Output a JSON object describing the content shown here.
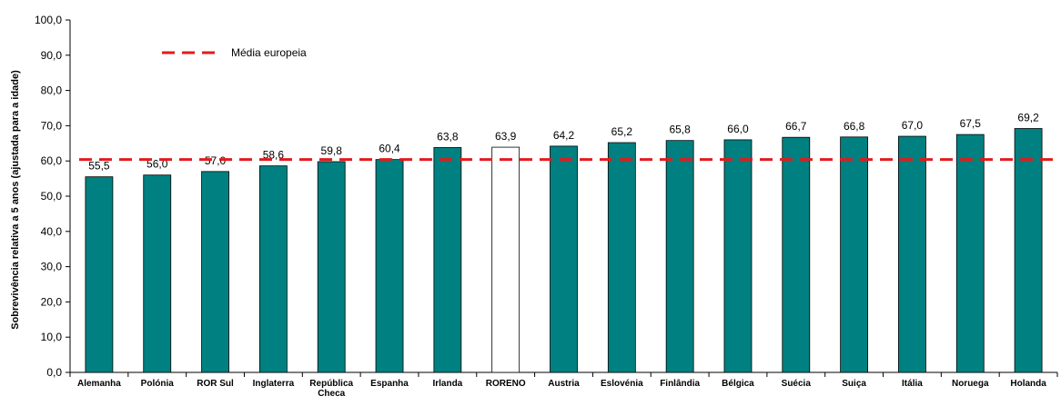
{
  "chart_data": {
    "type": "bar",
    "ylabel": "Sobrevivência relativa a 5 anos (ajustada para a idade)",
    "ylim": [
      0,
      100
    ],
    "ytick_step": 10,
    "y_tick_labels": [
      "0,0",
      "10,0",
      "20,0",
      "30,0",
      "40,0",
      "50,0",
      "60,0",
      "70,0",
      "80,0",
      "90,0",
      "100,0"
    ],
    "grid": false,
    "categories": [
      [
        "Alemanha"
      ],
      [
        "Polónia"
      ],
      [
        "ROR Sul"
      ],
      [
        "Inglaterra"
      ],
      [
        "República",
        "Checa"
      ],
      [
        "Espanha"
      ],
      [
        "Irlanda"
      ],
      [
        "RORENO"
      ],
      [
        "Austria"
      ],
      [
        "Eslovénia"
      ],
      [
        "Finlândia"
      ],
      [
        "Bélgica"
      ],
      [
        "Suécia"
      ],
      [
        "Suiça"
      ],
      [
        "Itália"
      ],
      [
        "Noruega"
      ],
      [
        "Holanda"
      ]
    ],
    "values": [
      55.5,
      56.0,
      57.0,
      58.6,
      59.8,
      60.4,
      63.8,
      63.9,
      64.2,
      65.2,
      65.8,
      66.0,
      66.7,
      66.8,
      67.0,
      67.5,
      69.2
    ],
    "value_labels": [
      "55,5",
      "56,0",
      "57,0",
      "58,6",
      "59,8",
      "60,4",
      "63,8",
      "63,9",
      "64,2",
      "65,2",
      "65,8",
      "66,0",
      "66,7",
      "66,8",
      "67,0",
      "67,5",
      "69,2"
    ],
    "bar_color": "#008080",
    "highlight_index": 7,
    "highlight_color": "#ffffff",
    "reference_line": {
      "name": "Média europeia",
      "value": 60.4,
      "color": "#e41a1c",
      "style": "dashed"
    },
    "legend_position": "top-left"
  }
}
